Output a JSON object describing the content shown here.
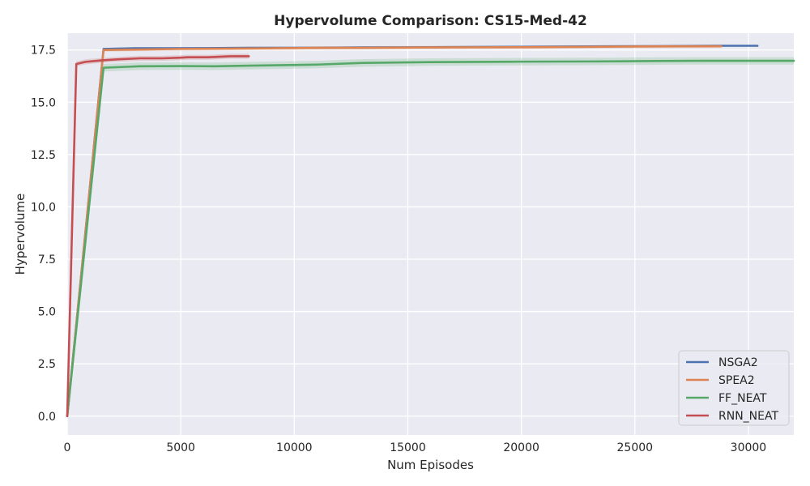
{
  "chart_data": {
    "type": "line",
    "title": "Hypervolume Comparison: CS15-Med-42",
    "xlabel": "Num Episodes",
    "ylabel": "Hypervolume",
    "xlim": [
      0,
      32000
    ],
    "ylim": [
      -0.9,
      18.3
    ],
    "xticks": [
      0,
      5000,
      10000,
      15000,
      20000,
      25000,
      30000
    ],
    "xtick_labels": [
      "0",
      "5000",
      "10000",
      "15000",
      "20000",
      "25000",
      "30000"
    ],
    "yticks": [
      0.0,
      2.5,
      5.0,
      7.5,
      10.0,
      12.5,
      15.0,
      17.5
    ],
    "ytick_labels": [
      "0.0",
      "2.5",
      "5.0",
      "7.5",
      "10.0",
      "12.5",
      "15.0",
      "17.5"
    ],
    "grid": true,
    "background": "#eaeaf2",
    "legend_position": "lower-right",
    "series": [
      {
        "name": "NSGA2",
        "color": "#4c72b0",
        "band": 0.05,
        "x": [
          0,
          1600,
          3000,
          5000,
          8000,
          11000,
          13000,
          16000,
          20000,
          23000,
          26000,
          29000,
          30400
        ],
        "y": [
          0.0,
          17.55,
          17.58,
          17.58,
          17.6,
          17.6,
          17.62,
          17.63,
          17.65,
          17.67,
          17.68,
          17.7,
          17.7
        ]
      },
      {
        "name": "SPEA2",
        "color": "#dd8452",
        "band": 0.08,
        "x": [
          0,
          1600,
          3000,
          5000,
          8000,
          11000,
          13000,
          16000,
          20000,
          23000,
          26000,
          28800
        ],
        "y": [
          0.0,
          17.5,
          17.52,
          17.55,
          17.57,
          17.6,
          17.6,
          17.62,
          17.63,
          17.65,
          17.67,
          17.68
        ]
      },
      {
        "name": "FF_NEAT",
        "color": "#55a868",
        "band": 0.18,
        "x": [
          0,
          1600,
          3200,
          5000,
          6500,
          8000,
          11000,
          13000,
          16000,
          18000,
          20000,
          23000,
          26000,
          28000,
          32000
        ],
        "y": [
          0.0,
          16.65,
          16.72,
          16.73,
          16.72,
          16.75,
          16.8,
          16.88,
          16.92,
          16.93,
          16.94,
          16.95,
          16.97,
          16.98,
          16.98
        ]
      },
      {
        "name": "RNN_NEAT",
        "color": "#c44e52",
        "band": 0.12,
        "x": [
          0,
          400,
          800,
          1500,
          2200,
          3200,
          4200,
          5000,
          5300,
          6200,
          7200,
          8000
        ],
        "y": [
          0.0,
          16.83,
          16.93,
          17.0,
          17.05,
          17.1,
          17.1,
          17.13,
          17.15,
          17.15,
          17.2,
          17.2
        ]
      }
    ]
  }
}
